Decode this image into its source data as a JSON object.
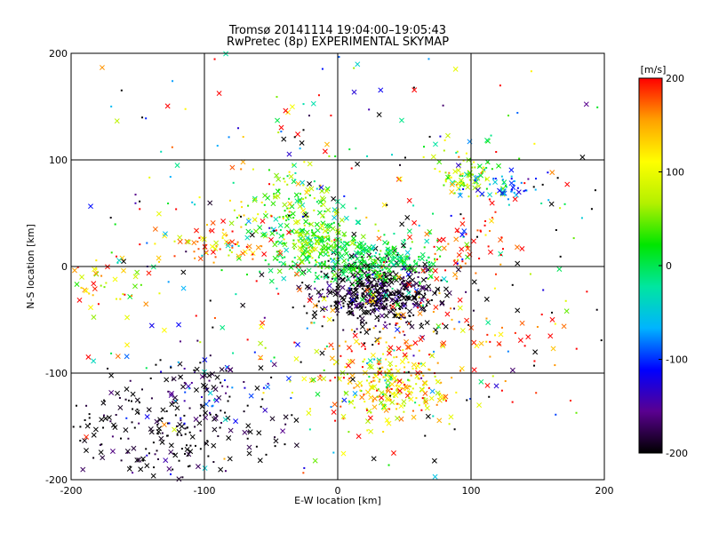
{
  "chart_data": {
    "type": "scatter",
    "title": "Tromsø 20141114 19:04:00–19:05:43",
    "subtitle": "RwPretec (8p) EXPERIMENTAL SKYMAP",
    "xlabel": "E-W location [km]",
    "ylabel": "N-S location [km]",
    "xlim": [
      -200,
      200
    ],
    "ylim": [
      -200,
      200
    ],
    "xticks": [
      -200,
      -100,
      0,
      100,
      200
    ],
    "yticks": [
      -200,
      -100,
      0,
      100,
      200
    ],
    "grid": true,
    "colorbar": {
      "label": "[m/s]",
      "range": [
        -200,
        200
      ],
      "ticks": [
        200,
        100,
        0,
        -100,
        -200
      ],
      "colors": [
        "#000000",
        "#5a0090",
        "#0000ff",
        "#00b4ff",
        "#00e6a0",
        "#00e600",
        "#b4f000",
        "#ffff00",
        "#ffa000",
        "#ff0000"
      ]
    },
    "markers": [
      "cross",
      "dot"
    ],
    "clusters": [
      {
        "x": 30,
        "y": -25,
        "sx": 25,
        "sy": 15,
        "n": 520,
        "v": -200,
        "dv": 30
      },
      {
        "x": 20,
        "y": 5,
        "sx": 30,
        "sy": 12,
        "n": 300,
        "v": 5,
        "dv": 25
      },
      {
        "x": -20,
        "y": 25,
        "sx": 18,
        "sy": 15,
        "n": 180,
        "v": 30,
        "dv": 35
      },
      {
        "x": -40,
        "y": 60,
        "sx": 25,
        "sy": 25,
        "n": 120,
        "v": 70,
        "dv": 60
      },
      {
        "x": 40,
        "y": -115,
        "sx": 20,
        "sy": 15,
        "n": 200,
        "v": 110,
        "dv": 50
      },
      {
        "x": 55,
        "y": -75,
        "sx": 50,
        "sy": 30,
        "n": 180,
        "v": 170,
        "dv": 40
      },
      {
        "x": -130,
        "y": -160,
        "sx": 40,
        "sy": 30,
        "n": 230,
        "v": -200,
        "dv": 20
      },
      {
        "x": -100,
        "y": -115,
        "sx": 25,
        "sy": 20,
        "n": 90,
        "v": -150,
        "dv": 50
      },
      {
        "x": 95,
        "y": 85,
        "sx": 12,
        "sy": 12,
        "n": 90,
        "v": 60,
        "dv": 45
      },
      {
        "x": 125,
        "y": 75,
        "sx": 12,
        "sy": 7,
        "n": 50,
        "v": -80,
        "dv": 40
      },
      {
        "x": -95,
        "y": 22,
        "sx": 20,
        "sy": 10,
        "n": 60,
        "v": 160,
        "dv": 40
      },
      {
        "x": -170,
        "y": -15,
        "sx": 15,
        "sy": 15,
        "n": 40,
        "v": 120,
        "dv": 60
      },
      {
        "x": 100,
        "y": 20,
        "sx": 20,
        "sy": 15,
        "n": 50,
        "v": 190,
        "dv": 20
      },
      {
        "x": 0,
        "y": 0,
        "sx": 120,
        "sy": 110,
        "n": 450,
        "v": 0,
        "dv": 200
      }
    ]
  }
}
